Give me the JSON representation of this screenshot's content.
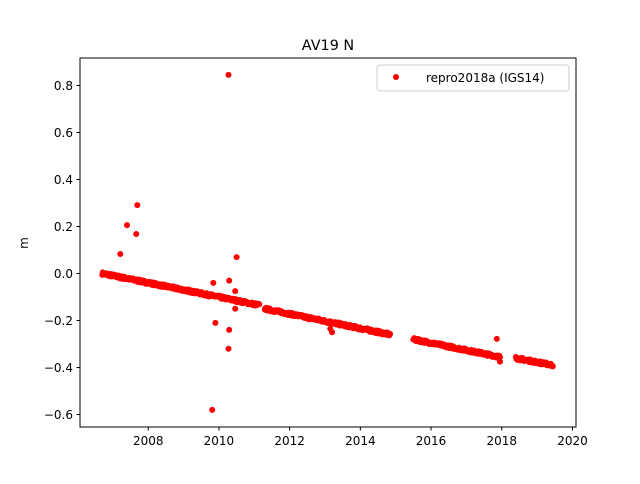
{
  "chart_data": {
    "type": "scatter",
    "title": "AV19 N",
    "xlabel": "",
    "ylabel": "m",
    "xlim": [
      2006.07,
      2020.1
    ],
    "ylim": [
      -0.653,
      0.917
    ],
    "xticks": [
      2008,
      2010,
      2012,
      2014,
      2016,
      2018,
      2020
    ],
    "xtick_labels": [
      "2008",
      "2010",
      "2012",
      "2014",
      "2016",
      "2018",
      "2020"
    ],
    "yticks": [
      -0.6,
      -0.4,
      -0.2,
      0.0,
      0.2,
      0.4,
      0.6,
      0.8
    ],
    "ytick_labels": [
      "−0.6",
      "−0.4",
      "−0.2",
      "0.0",
      "0.2",
      "0.4",
      "0.6",
      "0.8"
    ],
    "grid": false,
    "legend": {
      "placement": "top-right",
      "entries": [
        {
          "label": "repro2018a (IGS14)",
          "color": "#ff0000"
        }
      ]
    },
    "series": [
      {
        "name": "repro2018a (IGS14)",
        "color": "#ff0000",
        "marker": "circle",
        "trend_segments": [
          {
            "x_start": 2006.7,
            "x_end": 2011.15,
            "y_start": 0.0,
            "y_end": -0.135
          },
          {
            "x_start": 2011.3,
            "x_end": 2014.85,
            "y_start": -0.15,
            "y_end": -0.26
          },
          {
            "x_start": 2015.5,
            "x_end": 2017.95,
            "y_start": -0.28,
            "y_end": -0.355
          },
          {
            "x_start": 2018.4,
            "x_end": 2019.45,
            "y_start": -0.36,
            "y_end": -0.39
          }
        ],
        "outliers": [
          {
            "x": 2007.21,
            "y": 0.083
          },
          {
            "x": 2007.4,
            "y": 0.206
          },
          {
            "x": 2007.69,
            "y": 0.291
          },
          {
            "x": 2007.66,
            "y": 0.168
          },
          {
            "x": 2009.84,
            "y": -0.04
          },
          {
            "x": 2009.9,
            "y": -0.21
          },
          {
            "x": 2009.81,
            "y": -0.58
          },
          {
            "x": 2010.29,
            "y": -0.03
          },
          {
            "x": 2010.29,
            "y": -0.24
          },
          {
            "x": 2010.27,
            "y": -0.32
          },
          {
            "x": 2010.5,
            "y": 0.07
          },
          {
            "x": 2010.46,
            "y": -0.075
          },
          {
            "x": 2010.46,
            "y": -0.15
          },
          {
            "x": 2010.27,
            "y": 0.845
          },
          {
            "x": 2013.2,
            "y": -0.25
          },
          {
            "x": 2013.15,
            "y": -0.235
          },
          {
            "x": 2017.86,
            "y": -0.278
          },
          {
            "x": 2017.95,
            "y": -0.375
          }
        ]
      }
    ]
  }
}
